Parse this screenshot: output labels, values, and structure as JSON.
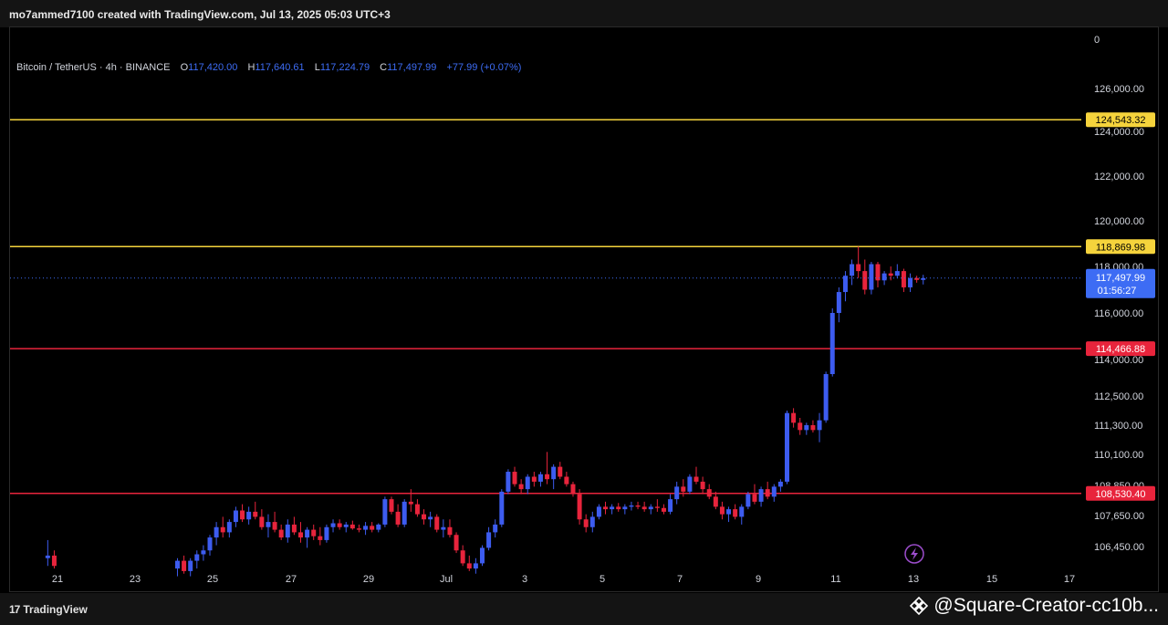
{
  "header": {
    "creator_text": "mo7ammed7100 created with TradingView.com, Jul 13, 2025 05:03 UTC+3"
  },
  "legend": {
    "symbol": "Bitcoin / TetherUS · 4h · BINANCE",
    "o_label": "O",
    "o_value": "117,420.00",
    "h_label": "H",
    "h_value": "117,640.61",
    "l_label": "L",
    "l_value": "117,224.79",
    "c_label": "C",
    "c_value": "117,497.99",
    "change": "+77.99 (+0.07%)"
  },
  "corner_value": "0",
  "footer": {
    "brand": "TradingView",
    "brand_mark": "17",
    "watermark": "@Square-Creator-cc10b..."
  },
  "colors": {
    "up": "#3d5cf0",
    "down": "#e8243c",
    "yellow_line": "#f5d33c",
    "red_line": "#e8243c",
    "price_line": "#3d6cf4",
    "background": "#000000"
  },
  "chart_data": {
    "type": "candlestick",
    "symbol": "BTCUSDT",
    "interval": "4h",
    "y_ticks": [
      "126,000.00",
      "124,000.00",
      "122,000.00",
      "120,000.00",
      "118,000.00",
      "116,000.00",
      "114,000.00",
      "112,500.00",
      "111,300.00",
      "110,100.00",
      "108,850.00",
      "107,650.00",
      "106,450.00"
    ],
    "x_ticks": [
      "21",
      "23",
      "25",
      "27",
      "29",
      "Jul",
      "3",
      "5",
      "7",
      "9",
      "11",
      "13",
      "15",
      "17"
    ],
    "horizontal_levels": [
      {
        "value": 124543.32,
        "label": "124,543.32",
        "color": "yellow"
      },
      {
        "value": 118869.98,
        "label": "118,869.98",
        "color": "yellow"
      },
      {
        "value": 114466.88,
        "label": "114,466.88",
        "color": "red"
      },
      {
        "value": 108530.4,
        "label": "108,530.40",
        "color": "red"
      }
    ],
    "current_price": {
      "label": "117,497.99",
      "countdown": "01:56:27",
      "value": 117497.99
    },
    "candles": [
      {
        "t": "Jun 20 16:00",
        "o": 106000,
        "h": 106700,
        "l": 105700,
        "c": 106100
      },
      {
        "t": "Jun 20 20:00",
        "o": 106100,
        "h": 106300,
        "l": 105600,
        "c": 105700
      },
      {
        "t": "Jun 24 00:00",
        "o": 105600,
        "h": 106000,
        "l": 105300,
        "c": 105900
      },
      {
        "t": "Jun 24 04:00",
        "o": 105900,
        "h": 106100,
        "l": 105400,
        "c": 105500
      },
      {
        "t": "Jun 24 08:00",
        "o": 105500,
        "h": 106000,
        "l": 105300,
        "c": 105900
      },
      {
        "t": "Jun 24 12:00",
        "o": 105900,
        "h": 106300,
        "l": 105600,
        "c": 106150
      },
      {
        "t": "Jun 24 16:00",
        "o": 106150,
        "h": 106500,
        "l": 105900,
        "c": 106300
      },
      {
        "t": "Jun 24 20:00",
        "o": 106300,
        "h": 106900,
        "l": 106100,
        "c": 106800
      },
      {
        "t": "Jun 25 00:00",
        "o": 106800,
        "h": 107400,
        "l": 106500,
        "c": 107200
      },
      {
        "t": "Jun 25 04:00",
        "o": 107200,
        "h": 107600,
        "l": 106800,
        "c": 107000
      },
      {
        "t": "Jun 25 08:00",
        "o": 107000,
        "h": 107500,
        "l": 106800,
        "c": 107400
      },
      {
        "t": "Jun 25 12:00",
        "o": 107400,
        "h": 108000,
        "l": 107200,
        "c": 107850
      },
      {
        "t": "Jun 25 16:00",
        "o": 107850,
        "h": 108100,
        "l": 107400,
        "c": 107500
      },
      {
        "t": "Jun 25 20:00",
        "o": 107500,
        "h": 108000,
        "l": 107300,
        "c": 107800
      },
      {
        "t": "Jun 26 00:00",
        "o": 107800,
        "h": 108200,
        "l": 107500,
        "c": 107600
      },
      {
        "t": "Jun 26 04:00",
        "o": 107600,
        "h": 107900,
        "l": 107100,
        "c": 107200
      },
      {
        "t": "Jun 26 08:00",
        "o": 107200,
        "h": 107700,
        "l": 106800,
        "c": 107400
      },
      {
        "t": "Jun 26 12:00",
        "o": 107400,
        "h": 107800,
        "l": 107000,
        "c": 107100
      },
      {
        "t": "Jun 26 16:00",
        "o": 107100,
        "h": 107300,
        "l": 106700,
        "c": 106800
      },
      {
        "t": "Jun 26 20:00",
        "o": 106800,
        "h": 107500,
        "l": 106600,
        "c": 107300
      },
      {
        "t": "Jun 27 00:00",
        "o": 107300,
        "h": 107600,
        "l": 106900,
        "c": 107000
      },
      {
        "t": "Jun 27 04:00",
        "o": 107000,
        "h": 107400,
        "l": 106600,
        "c": 106800
      },
      {
        "t": "Jun 27 08:00",
        "o": 106800,
        "h": 107200,
        "l": 106400,
        "c": 107100
      },
      {
        "t": "Jun 27 12:00",
        "o": 107100,
        "h": 107300,
        "l": 106700,
        "c": 106850
      },
      {
        "t": "Jun 27 16:00",
        "o": 106850,
        "h": 107200,
        "l": 106500,
        "c": 106700
      },
      {
        "t": "Jun 27 20:00",
        "o": 106700,
        "h": 107300,
        "l": 106600,
        "c": 107200
      },
      {
        "t": "Jun 28 00:00",
        "o": 107200,
        "h": 107500,
        "l": 107000,
        "c": 107350
      },
      {
        "t": "Jun 28 04:00",
        "o": 107350,
        "h": 107500,
        "l": 107100,
        "c": 107200
      },
      {
        "t": "Jun 28 08:00",
        "o": 107200,
        "h": 107400,
        "l": 107000,
        "c": 107300
      },
      {
        "t": "Jun 28 12:00",
        "o": 107300,
        "h": 107450,
        "l": 107100,
        "c": 107150
      },
      {
        "t": "Jun 28 16:00",
        "o": 107150,
        "h": 107300,
        "l": 107000,
        "c": 107100
      },
      {
        "t": "Jun 28 20:00",
        "o": 107100,
        "h": 107400,
        "l": 106900,
        "c": 107250
      },
      {
        "t": "Jun 29 00:00",
        "o": 107250,
        "h": 107400,
        "l": 107000,
        "c": 107100
      },
      {
        "t": "Jun 29 04:00",
        "o": 107100,
        "h": 107350,
        "l": 107000,
        "c": 107300
      },
      {
        "t": "Jun 29 08:00",
        "o": 107300,
        "h": 108400,
        "l": 107200,
        "c": 108300
      },
      {
        "t": "Jun 29 12:00",
        "o": 108300,
        "h": 108400,
        "l": 107700,
        "c": 107800
      },
      {
        "t": "Jun 29 16:00",
        "o": 107800,
        "h": 108100,
        "l": 107200,
        "c": 107300
      },
      {
        "t": "Jun 29 20:00",
        "o": 107300,
        "h": 108300,
        "l": 107200,
        "c": 108200
      },
      {
        "t": "Jun 30 00:00",
        "o": 108200,
        "h": 108700,
        "l": 107800,
        "c": 108100
      },
      {
        "t": "Jun 30 04:00",
        "o": 108100,
        "h": 108300,
        "l": 107600,
        "c": 107700
      },
      {
        "t": "Jun 30 08:00",
        "o": 107700,
        "h": 107900,
        "l": 107300,
        "c": 107500
      },
      {
        "t": "Jun 30 12:00",
        "o": 107500,
        "h": 107800,
        "l": 107200,
        "c": 107600
      },
      {
        "t": "Jun 30 16:00",
        "o": 107600,
        "h": 107700,
        "l": 107000,
        "c": 107100
      },
      {
        "t": "Jun 30 20:00",
        "o": 107100,
        "h": 107500,
        "l": 106800,
        "c": 107200
      },
      {
        "t": "Jul 01 00:00",
        "o": 107200,
        "h": 107500,
        "l": 106800,
        "c": 106900
      },
      {
        "t": "Jul 01 04:00",
        "o": 106900,
        "h": 107000,
        "l": 106200,
        "c": 106300
      },
      {
        "t": "Jul 01 08:00",
        "o": 106300,
        "h": 106500,
        "l": 105700,
        "c": 105800
      },
      {
        "t": "Jul 01 12:00",
        "o": 105800,
        "h": 106100,
        "l": 105500,
        "c": 105600
      },
      {
        "t": "Jul 01 16:00",
        "o": 105600,
        "h": 106000,
        "l": 105400,
        "c": 105800
      },
      {
        "t": "Jul 01 20:00",
        "o": 105800,
        "h": 106500,
        "l": 105700,
        "c": 106400
      },
      {
        "t": "Jul 02 00:00",
        "o": 106400,
        "h": 107200,
        "l": 106300,
        "c": 107000
      },
      {
        "t": "Jul 02 04:00",
        "o": 107000,
        "h": 107500,
        "l": 106800,
        "c": 107300
      },
      {
        "t": "Jul 02 08:00",
        "o": 107300,
        "h": 108700,
        "l": 107200,
        "c": 108600
      },
      {
        "t": "Jul 02 12:00",
        "o": 108600,
        "h": 109500,
        "l": 108500,
        "c": 109400
      },
      {
        "t": "Jul 02 16:00",
        "o": 109400,
        "h": 109600,
        "l": 108800,
        "c": 108900
      },
      {
        "t": "Jul 02 20:00",
        "o": 108900,
        "h": 109100,
        "l": 108500,
        "c": 108700
      },
      {
        "t": "Jul 03 00:00",
        "o": 108700,
        "h": 109300,
        "l": 108500,
        "c": 109200
      },
      {
        "t": "Jul 03 04:00",
        "o": 109200,
        "h": 109400,
        "l": 108800,
        "c": 109000
      },
      {
        "t": "Jul 03 08:00",
        "o": 109000,
        "h": 109400,
        "l": 108800,
        "c": 109300
      },
      {
        "t": "Jul 03 12:00",
        "o": 109300,
        "h": 110200,
        "l": 108900,
        "c": 109100
      },
      {
        "t": "Jul 03 16:00",
        "o": 109100,
        "h": 109700,
        "l": 108700,
        "c": 109600
      },
      {
        "t": "Jul 03 20:00",
        "o": 109600,
        "h": 109800,
        "l": 109100,
        "c": 109200
      },
      {
        "t": "Jul 04 00:00",
        "o": 109200,
        "h": 109400,
        "l": 108800,
        "c": 108900
      },
      {
        "t": "Jul 04 04:00",
        "o": 108900,
        "h": 109000,
        "l": 108400,
        "c": 108500
      },
      {
        "t": "Jul 04 08:00",
        "o": 108500,
        "h": 108700,
        "l": 107300,
        "c": 107500
      },
      {
        "t": "Jul 04 12:00",
        "o": 107500,
        "h": 107700,
        "l": 107000,
        "c": 107200
      },
      {
        "t": "Jul 04 16:00",
        "o": 107200,
        "h": 107800,
        "l": 107000,
        "c": 107600
      },
      {
        "t": "Jul 04 20:00",
        "o": 107600,
        "h": 108100,
        "l": 107500,
        "c": 108000
      },
      {
        "t": "Jul 05 00:00",
        "o": 108000,
        "h": 108200,
        "l": 107700,
        "c": 107900
      },
      {
        "t": "Jul 05 04:00",
        "o": 107900,
        "h": 108100,
        "l": 107700,
        "c": 108000
      },
      {
        "t": "Jul 05 08:00",
        "o": 108000,
        "h": 108150,
        "l": 107800,
        "c": 107900
      },
      {
        "t": "Jul 05 12:00",
        "o": 107900,
        "h": 108100,
        "l": 107700,
        "c": 108000
      },
      {
        "t": "Jul 05 16:00",
        "o": 108000,
        "h": 108200,
        "l": 107850,
        "c": 108050
      },
      {
        "t": "Jul 05 20:00",
        "o": 108050,
        "h": 108200,
        "l": 107900,
        "c": 108000
      },
      {
        "t": "Jul 06 00:00",
        "o": 108000,
        "h": 108200,
        "l": 107800,
        "c": 107900
      },
      {
        "t": "Jul 06 04:00",
        "o": 107900,
        "h": 108100,
        "l": 107700,
        "c": 108000
      },
      {
        "t": "Jul 06 08:00",
        "o": 108000,
        "h": 108300,
        "l": 107800,
        "c": 107950
      },
      {
        "t": "Jul 06 12:00",
        "o": 107950,
        "h": 108100,
        "l": 107700,
        "c": 107800
      },
      {
        "t": "Jul 06 16:00",
        "o": 107800,
        "h": 108500,
        "l": 107700,
        "c": 108300
      },
      {
        "t": "Jul 06 20:00",
        "o": 108300,
        "h": 109000,
        "l": 108100,
        "c": 108800
      },
      {
        "t": "Jul 07 00:00",
        "o": 108800,
        "h": 109100,
        "l": 108400,
        "c": 108600
      },
      {
        "t": "Jul 07 04:00",
        "o": 108600,
        "h": 109300,
        "l": 108500,
        "c": 109200
      },
      {
        "t": "Jul 07 08:00",
        "o": 109200,
        "h": 109600,
        "l": 108900,
        "c": 109000
      },
      {
        "t": "Jul 07 12:00",
        "o": 109000,
        "h": 109200,
        "l": 108500,
        "c": 108700
      },
      {
        "t": "Jul 07 16:00",
        "o": 108700,
        "h": 108900,
        "l": 108300,
        "c": 108400
      },
      {
        "t": "Jul 07 20:00",
        "o": 108400,
        "h": 108600,
        "l": 107900,
        "c": 108000
      },
      {
        "t": "Jul 08 00:00",
        "o": 108000,
        "h": 108200,
        "l": 107500,
        "c": 107700
      },
      {
        "t": "Jul 08 04:00",
        "o": 107700,
        "h": 108000,
        "l": 107400,
        "c": 107900
      },
      {
        "t": "Jul 08 08:00",
        "o": 107900,
        "h": 108100,
        "l": 107500,
        "c": 107600
      },
      {
        "t": "Jul 08 12:00",
        "o": 107600,
        "h": 108100,
        "l": 107300,
        "c": 108000
      },
      {
        "t": "Jul 08 16:00",
        "o": 108000,
        "h": 108600,
        "l": 107900,
        "c": 108500
      },
      {
        "t": "Jul 08 20:00",
        "o": 108500,
        "h": 108900,
        "l": 108100,
        "c": 108200
      },
      {
        "t": "Jul 09 00:00",
        "o": 108200,
        "h": 108800,
        "l": 108000,
        "c": 108700
      },
      {
        "t": "Jul 09 04:00",
        "o": 108700,
        "h": 109000,
        "l": 108300,
        "c": 108400
      },
      {
        "t": "Jul 09 08:00",
        "o": 108400,
        "h": 108900,
        "l": 108200,
        "c": 108800
      },
      {
        "t": "Jul 09 12:00",
        "o": 108800,
        "h": 109100,
        "l": 108600,
        "c": 109000
      },
      {
        "t": "Jul 09 16:00",
        "o": 109000,
        "h": 111900,
        "l": 108900,
        "c": 111800
      },
      {
        "t": "Jul 09 20:00",
        "o": 111800,
        "h": 112000,
        "l": 111200,
        "c": 111400
      },
      {
        "t": "Jul 10 00:00",
        "o": 111400,
        "h": 111600,
        "l": 110900,
        "c": 111100
      },
      {
        "t": "Jul 10 04:00",
        "o": 111100,
        "h": 111400,
        "l": 110900,
        "c": 111300
      },
      {
        "t": "Jul 10 08:00",
        "o": 111300,
        "h": 111500,
        "l": 111000,
        "c": 111100
      },
      {
        "t": "Jul 10 12:00",
        "o": 111100,
        "h": 111800,
        "l": 110600,
        "c": 111500
      },
      {
        "t": "Jul 10 16:00",
        "o": 111500,
        "h": 113500,
        "l": 111400,
        "c": 113400
      },
      {
        "t": "Jul 10 20:00",
        "o": 113400,
        "h": 116200,
        "l": 113300,
        "c": 116000
      },
      {
        "t": "Jul 11 00:00",
        "o": 116000,
        "h": 117100,
        "l": 115600,
        "c": 116900
      },
      {
        "t": "Jul 11 04:00",
        "o": 116900,
        "h": 117800,
        "l": 116500,
        "c": 117600
      },
      {
        "t": "Jul 11 08:00",
        "o": 117600,
        "h": 118300,
        "l": 117200,
        "c": 118100
      },
      {
        "t": "Jul 11 12:00",
        "o": 118100,
        "h": 118869,
        "l": 117500,
        "c": 117800
      },
      {
        "t": "Jul 11 16:00",
        "o": 117800,
        "h": 118300,
        "l": 116800,
        "c": 117000
      },
      {
        "t": "Jul 11 20:00",
        "o": 117000,
        "h": 118200,
        "l": 116800,
        "c": 118100
      },
      {
        "t": "Jul 12 00:00",
        "o": 118100,
        "h": 118200,
        "l": 117100,
        "c": 117400
      },
      {
        "t": "Jul 12 04:00",
        "o": 117400,
        "h": 117800,
        "l": 117200,
        "c": 117700
      },
      {
        "t": "Jul 12 08:00",
        "o": 117700,
        "h": 118000,
        "l": 117400,
        "c": 117600
      },
      {
        "t": "Jul 12 12:00",
        "o": 117600,
        "h": 118100,
        "l": 117500,
        "c": 117800
      },
      {
        "t": "Jul 12 16:00",
        "o": 117800,
        "h": 117900,
        "l": 116900,
        "c": 117100
      },
      {
        "t": "Jul 12 20:00",
        "o": 117100,
        "h": 117700,
        "l": 116900,
        "c": 117500
      },
      {
        "t": "Jul 13 00:00",
        "o": 117500,
        "h": 117600,
        "l": 117300,
        "c": 117420
      },
      {
        "t": "Jul 13 04:00",
        "o": 117420,
        "h": 117640.61,
        "l": 117224.79,
        "c": 117497.99
      }
    ]
  }
}
